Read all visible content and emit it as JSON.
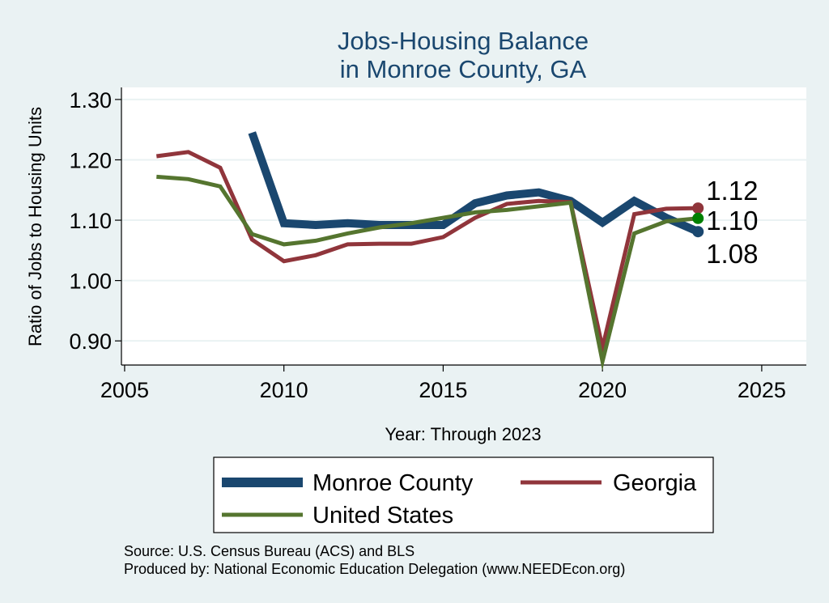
{
  "chart_data": {
    "type": "line",
    "title_line1": "Jobs-Housing Balance",
    "title_line2": "in Monroe County, GA",
    "xlabel": "Year: Through 2023",
    "ylabel": "Ratio of Jobs to Housing Units",
    "xlim": [
      2004.9,
      2026.4
    ],
    "ylim": [
      0.86,
      1.32
    ],
    "x_ticks": [
      2005,
      2010,
      2015,
      2020,
      2025
    ],
    "y_ticks": [
      0.9,
      1.0,
      1.1,
      1.2,
      1.3
    ],
    "y_tick_labels": [
      "0.90",
      "1.00",
      "1.10",
      "1.20",
      "1.30"
    ],
    "grid": true,
    "legend_position": "bottom",
    "series": [
      {
        "name": "Monroe County",
        "color": "#1a476f",
        "x": [
          2009,
          2010,
          2011,
          2012,
          2013,
          2014,
          2015,
          2016,
          2017,
          2018,
          2019,
          2020,
          2021,
          2022,
          2023
        ],
        "y": [
          1.245,
          1.095,
          1.092,
          1.095,
          1.092,
          1.092,
          1.092,
          1.128,
          1.141,
          1.146,
          1.132,
          1.096,
          1.132,
          1.104,
          1.081
        ],
        "end_label": "1.08"
      },
      {
        "name": "Georgia",
        "color": "#90353b",
        "x": [
          2006,
          2007,
          2008,
          2009,
          2010,
          2011,
          2012,
          2013,
          2014,
          2015,
          2016,
          2017,
          2018,
          2019,
          2020,
          2021,
          2022,
          2023
        ],
        "y": [
          1.206,
          1.213,
          1.187,
          1.068,
          1.032,
          1.042,
          1.06,
          1.061,
          1.061,
          1.072,
          1.104,
          1.127,
          1.132,
          1.13,
          0.889,
          1.11,
          1.119,
          1.12
        ],
        "end_label": "1.12"
      },
      {
        "name": "United States",
        "color": "#55752f",
        "x": [
          2006,
          2007,
          2008,
          2009,
          2010,
          2011,
          2012,
          2013,
          2014,
          2015,
          2016,
          2017,
          2018,
          2019,
          2020,
          2021,
          2022,
          2023
        ],
        "y": [
          1.172,
          1.168,
          1.156,
          1.077,
          1.06,
          1.066,
          1.078,
          1.088,
          1.095,
          1.104,
          1.113,
          1.117,
          1.123,
          1.129,
          0.866,
          1.078,
          1.098,
          1.103
        ],
        "end_label": "1.10",
        "end_marker_color": "#008000"
      }
    ],
    "source_line1": "Source: U.S. Census Bureau (ACS) and BLS",
    "source_line2": "Produced by: National Economic Education Delegation (www.NEEDEcon.org)"
  }
}
